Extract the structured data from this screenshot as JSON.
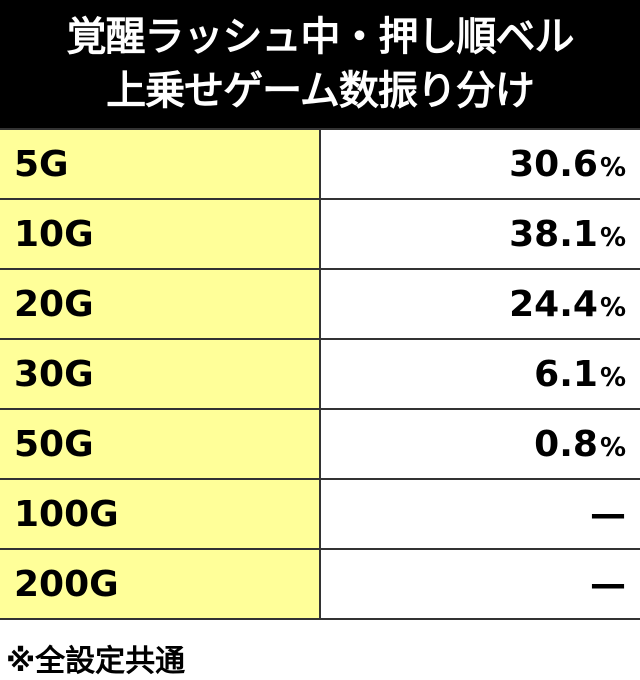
{
  "header": {
    "title": [
      "覚醒ラッシュ中・押し順ベル",
      "上乗せゲーム数振り分け"
    ]
  },
  "table": {
    "rows": [
      {
        "label": "5G",
        "value": "30.6",
        "unit": "%"
      },
      {
        "label": "10G",
        "value": "38.1",
        "unit": "%"
      },
      {
        "label": "20G",
        "value": "24.4",
        "unit": "%"
      },
      {
        "label": "30G",
        "value": "6.1",
        "unit": "%"
      },
      {
        "label": "50G",
        "value": "0.8",
        "unit": "%"
      },
      {
        "label": "100G",
        "value": "—"
      },
      {
        "label": "200G",
        "value": "—"
      }
    ]
  },
  "footer": {
    "note": "※全設定共通"
  }
}
